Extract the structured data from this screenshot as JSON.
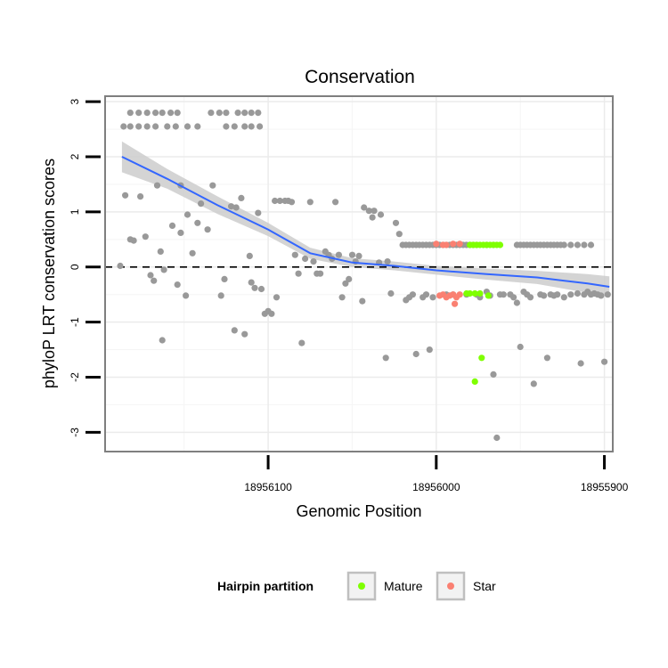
{
  "chart_data": {
    "type": "scatter",
    "title": "Conservation",
    "xlabel": "Genomic Position",
    "ylabel": "phyloP LRT conservation scores",
    "xlim": [
      18956197,
      18955895
    ],
    "x_reversed": true,
    "ylim": [
      -3.35,
      3.1
    ],
    "x_ticks": [
      18956100,
      18956000,
      18955900
    ],
    "x_tick_labels": [
      "18956100",
      "18956000",
      "18955900"
    ],
    "y_ticks": [
      3,
      2,
      1,
      0,
      -1,
      -2,
      -3
    ],
    "y_tick_labels": [
      "3",
      "2",
      "1",
      "0",
      "-1",
      "-2",
      "-3"
    ],
    "reference_line": {
      "y": 0,
      "style": "dashed"
    },
    "legend": {
      "title": "Hairpin partition",
      "position": "bottom",
      "entries": [
        {
          "label": "Mature",
          "color": "#7fff00"
        },
        {
          "label": "Star",
          "color": "#fa8072"
        }
      ]
    },
    "colors": {
      "other": "#999999",
      "mature": "#7fff00",
      "star": "#fa8072",
      "smooth": "#3366ff",
      "band": "#cccccc"
    },
    "series": [
      {
        "name": "Other",
        "points": [
          [
            18956186,
            2.55
          ],
          [
            18956182,
            2.8
          ],
          [
            18956177,
            2.8
          ],
          [
            18956172,
            2.8
          ],
          [
            18956167,
            2.8
          ],
          [
            18956163,
            2.8
          ],
          [
            18956158,
            2.8
          ],
          [
            18956154,
            2.8
          ],
          [
            18956182,
            2.55
          ],
          [
            18956177,
            2.55
          ],
          [
            18956172,
            2.55
          ],
          [
            18956167,
            2.55
          ],
          [
            18956160,
            2.55
          ],
          [
            18956155,
            2.55
          ],
          [
            18956148,
            2.55
          ],
          [
            18956142,
            2.55
          ],
          [
            18956134,
            2.8
          ],
          [
            18956129,
            2.8
          ],
          [
            18956125,
            2.8
          ],
          [
            18956118,
            2.8
          ],
          [
            18956114,
            2.8
          ],
          [
            18956110,
            2.8
          ],
          [
            18956106,
            2.8
          ],
          [
            18956125,
            2.55
          ],
          [
            18956120,
            2.55
          ],
          [
            18956114,
            2.55
          ],
          [
            18956110,
            2.55
          ],
          [
            18956105,
            2.55
          ],
          [
            18956185,
            1.3
          ],
          [
            18956182,
            0.5
          ],
          [
            18956180,
            0.48
          ],
          [
            18956176,
            1.28
          ],
          [
            18956173,
            0.55
          ],
          [
            18956170,
            -0.15
          ],
          [
            18956168,
            -0.25
          ],
          [
            18956166,
            1.48
          ],
          [
            18956164,
            0.28
          ],
          [
            18956163,
            -1.33
          ],
          [
            18956162,
            -0.05
          ],
          [
            18956157,
            0.75
          ],
          [
            18956154,
            -0.32
          ],
          [
            18956152,
            1.48
          ],
          [
            18956152,
            0.62
          ],
          [
            18956149,
            -0.52
          ],
          [
            18956148,
            0.95
          ],
          [
            18956145,
            0.25
          ],
          [
            18956142,
            0.8
          ],
          [
            18956140,
            1.15
          ],
          [
            18956136,
            0.68
          ],
          [
            18956133,
            1.48
          ],
          [
            18956128,
            -0.52
          ],
          [
            18956126,
            -0.22
          ],
          [
            18956122,
            1.1
          ],
          [
            18956120,
            -1.15
          ],
          [
            18956119,
            1.08
          ],
          [
            18956116,
            1.25
          ],
          [
            18956114,
            -1.22
          ],
          [
            18956111,
            0.2
          ],
          [
            18956110,
            -0.28
          ],
          [
            18956108,
            -0.38
          ],
          [
            18956106,
            0.98
          ],
          [
            18956104,
            -0.4
          ],
          [
            18956102,
            -0.85
          ],
          [
            18956100,
            -0.8
          ],
          [
            18956098,
            -0.85
          ],
          [
            18956096,
            1.2
          ],
          [
            18956095,
            -0.55
          ],
          [
            18956093,
            1.2
          ],
          [
            18956090,
            1.2
          ],
          [
            18956088,
            1.2
          ],
          [
            18956086,
            1.18
          ],
          [
            18956084,
            0.22
          ],
          [
            18956082,
            -0.12
          ],
          [
            18956080,
            -1.38
          ],
          [
            18956078,
            0.15
          ],
          [
            18956075,
            1.18
          ],
          [
            18956073,
            0.1
          ],
          [
            18956071,
            -0.12
          ],
          [
            18956069,
            -0.12
          ],
          [
            18956066,
            0.28
          ],
          [
            18956064,
            0.22
          ],
          [
            18956062,
            0.15
          ],
          [
            18956060,
            1.18
          ],
          [
            18956058,
            0.22
          ],
          [
            18956056,
            -0.55
          ],
          [
            18956054,
            -0.3
          ],
          [
            18956052,
            -0.22
          ],
          [
            18956050,
            0.22
          ],
          [
            18956048,
            0.1
          ],
          [
            18956046,
            0.2
          ],
          [
            18956044,
            -0.62
          ],
          [
            18956043,
            1.08
          ],
          [
            18956040,
            1.02
          ],
          [
            18956038,
            0.9
          ],
          [
            18956037,
            1.02
          ],
          [
            18956034,
            0.08
          ],
          [
            18956033,
            0.95
          ],
          [
            18956030,
            -1.65
          ],
          [
            18956029,
            0.1
          ],
          [
            18956027,
            -0.48
          ],
          [
            18956024,
            0.8
          ],
          [
            18956022,
            0.6
          ],
          [
            18956020,
            0.4
          ],
          [
            18956018,
            0.4
          ],
          [
            18956016,
            0.4
          ],
          [
            18956014,
            0.4
          ],
          [
            18956012,
            0.4
          ],
          [
            18956010,
            0.4
          ],
          [
            18956008,
            0.4
          ],
          [
            18956006,
            0.4
          ],
          [
            18956004,
            0.4
          ],
          [
            18956002,
            0.4
          ],
          [
            18956000,
            0.4
          ],
          [
            18955998,
            0.4
          ],
          [
            18955996,
            0.4
          ],
          [
            18955994,
            0.4
          ],
          [
            18955992,
            0.4
          ],
          [
            18955990,
            0.4
          ],
          [
            18955988,
            0.4
          ],
          [
            18955986,
            0.4
          ],
          [
            18955984,
            0.4
          ],
          [
            18955982,
            0.4
          ],
          [
            18955980,
            0.4
          ],
          [
            18955978,
            0.4
          ],
          [
            18955976,
            0.4
          ],
          [
            18955970,
            0.4
          ],
          [
            18955966,
            0.4
          ],
          [
            18955952,
            0.4
          ],
          [
            18955950,
            0.4
          ],
          [
            18955948,
            0.4
          ],
          [
            18955946,
            0.4
          ],
          [
            18955944,
            0.4
          ],
          [
            18955942,
            0.4
          ],
          [
            18955940,
            0.4
          ],
          [
            18955938,
            0.4
          ],
          [
            18955936,
            0.4
          ],
          [
            18955934,
            0.4
          ],
          [
            18955932,
            0.4
          ],
          [
            18955930,
            0.4
          ],
          [
            18955928,
            0.4
          ],
          [
            18955926,
            0.4
          ],
          [
            18955924,
            0.4
          ],
          [
            18955920,
            0.4
          ],
          [
            18955916,
            0.4
          ],
          [
            18955912,
            0.4
          ],
          [
            18955908,
            0.4
          ],
          [
            18956018,
            -0.6
          ],
          [
            18956016,
            -0.55
          ],
          [
            18956014,
            -0.5
          ],
          [
            18956012,
            -1.58
          ],
          [
            18956008,
            -0.55
          ],
          [
            18956006,
            -0.5
          ],
          [
            18956004,
            -1.5
          ],
          [
            18956002,
            -0.55
          ],
          [
            18955994,
            -0.5
          ],
          [
            18955990,
            -0.5
          ],
          [
            18955982,
            -0.5
          ],
          [
            18955976,
            -0.5
          ],
          [
            18955974,
            -0.55
          ],
          [
            18955970,
            -0.45
          ],
          [
            18955968,
            -0.52
          ],
          [
            18955966,
            -1.95
          ],
          [
            18955964,
            -3.1
          ],
          [
            18955962,
            -0.5
          ],
          [
            18955960,
            -0.5
          ],
          [
            18955956,
            -0.5
          ],
          [
            18955954,
            -0.55
          ],
          [
            18955952,
            -0.65
          ],
          [
            18955950,
            -1.45
          ],
          [
            18955948,
            -0.45
          ],
          [
            18955946,
            -0.5
          ],
          [
            18955944,
            -0.55
          ],
          [
            18955942,
            -2.12
          ],
          [
            18955938,
            -0.5
          ],
          [
            18955936,
            -0.52
          ],
          [
            18955934,
            -1.65
          ],
          [
            18955932,
            -0.5
          ],
          [
            18955930,
            -0.52
          ],
          [
            18955928,
            -0.5
          ],
          [
            18955924,
            -0.55
          ],
          [
            18955920,
            -0.5
          ],
          [
            18955916,
            -0.48
          ],
          [
            18955914,
            -1.75
          ],
          [
            18955912,
            -0.5
          ],
          [
            18955910,
            -0.45
          ],
          [
            18955908,
            -0.5
          ],
          [
            18955906,
            -0.48
          ],
          [
            18955904,
            -0.5
          ],
          [
            18955902,
            -0.52
          ],
          [
            18955900,
            -1.72
          ],
          [
            18955898,
            -0.5
          ],
          [
            18956188,
            0.02
          ]
        ]
      },
      {
        "name": "Mature",
        "points": [
          [
            18955980,
            0.4
          ],
          [
            18955978,
            0.4
          ],
          [
            18955976,
            0.4
          ],
          [
            18955974,
            0.4
          ],
          [
            18955972,
            0.4
          ],
          [
            18955970,
            0.4
          ],
          [
            18955968,
            0.4
          ],
          [
            18955966,
            0.4
          ],
          [
            18955964,
            0.4
          ],
          [
            18955962,
            0.4
          ],
          [
            18955982,
            -0.48
          ],
          [
            18955980,
            -0.48
          ],
          [
            18955977,
            -0.48
          ],
          [
            18955974,
            -0.48
          ],
          [
            18955969,
            -0.52
          ],
          [
            18955973,
            -1.65
          ],
          [
            18955977,
            -2.08
          ]
        ]
      },
      {
        "name": "Star",
        "points": [
          [
            18956000,
            0.42
          ],
          [
            18955996,
            0.4
          ],
          [
            18955994,
            0.4
          ],
          [
            18955990,
            0.42
          ],
          [
            18955986,
            0.42
          ],
          [
            18955998,
            -0.52
          ],
          [
            18955996,
            -0.5
          ],
          [
            18955994,
            -0.55
          ],
          [
            18955992,
            -0.52
          ],
          [
            18955990,
            -0.5
          ],
          [
            18955988,
            -0.55
          ],
          [
            18955986,
            -0.5
          ],
          [
            18955989,
            -0.67
          ]
        ]
      }
    ],
    "smooth": {
      "method": "loess",
      "x": [
        18956187,
        18956160,
        18956130,
        18956100,
        18956075,
        18956050,
        18956025,
        18956000,
        18955970,
        18955940,
        18955910,
        18955897
      ],
      "y": [
        2.0,
        1.6,
        1.12,
        0.68,
        0.25,
        0.08,
        0.02,
        -0.06,
        -0.13,
        -0.19,
        -0.3,
        -0.36
      ],
      "lower": [
        1.72,
        1.42,
        0.96,
        0.56,
        0.15,
        0.0,
        -0.06,
        -0.14,
        -0.23,
        -0.31,
        -0.47,
        -0.55
      ],
      "upper": [
        2.28,
        1.78,
        1.28,
        0.8,
        0.35,
        0.16,
        0.1,
        0.02,
        -0.03,
        -0.07,
        -0.13,
        -0.17
      ]
    }
  }
}
